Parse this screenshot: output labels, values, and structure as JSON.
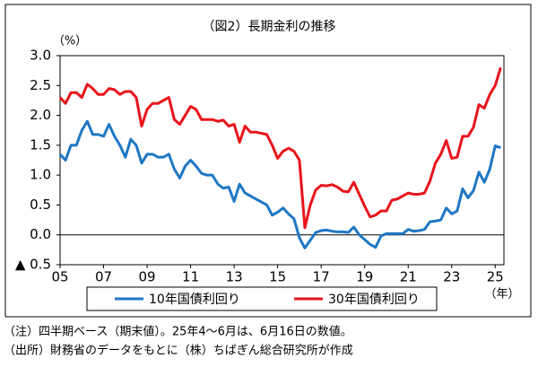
{
  "chart_data": {
    "type": "line",
    "title": "（図2）長期金利の推移",
    "y_label": "（%）",
    "x_label": "（年）",
    "notes": [
      "（注）四半期ベース（期末値）。25年4～6月は、6月16日の数値。",
      "（出所）財務省のデータをもとに（株）ちばぎん総合研究所が作成"
    ],
    "x": [
      2005,
      2005.25,
      2005.5,
      2005.75,
      2006,
      2006.25,
      2006.5,
      2006.75,
      2007,
      2007.25,
      2007.5,
      2007.75,
      2008,
      2008.25,
      2008.5,
      2008.75,
      2009,
      2009.25,
      2009.5,
      2009.75,
      2010,
      2010.25,
      2010.5,
      2010.75,
      2011,
      2011.25,
      2011.5,
      2011.75,
      2012,
      2012.25,
      2012.5,
      2012.75,
      2013,
      2013.25,
      2013.5,
      2013.75,
      2014,
      2014.25,
      2014.5,
      2014.75,
      2015,
      2015.25,
      2015.5,
      2015.75,
      2016,
      2016.25,
      2016.5,
      2016.75,
      2017,
      2017.25,
      2017.5,
      2017.75,
      2018,
      2018.25,
      2018.5,
      2018.75,
      2019,
      2019.25,
      2019.5,
      2019.75,
      2020,
      2020.25,
      2020.5,
      2020.75,
      2021,
      2021.25,
      2021.5,
      2021.75,
      2022,
      2022.25,
      2022.5,
      2022.75,
      2023,
      2023.25,
      2023.5,
      2023.75,
      2024,
      2024.25,
      2024.5,
      2024.75,
      2025,
      2025.25
    ],
    "series": [
      {
        "name": "10年国債利回り",
        "color": "#1f77c4",
        "values": [
          1.35,
          1.25,
          1.5,
          1.5,
          1.75,
          1.9,
          1.68,
          1.68,
          1.65,
          1.85,
          1.65,
          1.5,
          1.3,
          1.6,
          1.5,
          1.2,
          1.35,
          1.35,
          1.3,
          1.3,
          1.35,
          1.1,
          0.95,
          1.15,
          1.25,
          1.15,
          1.03,
          1.0,
          1.0,
          0.85,
          0.78,
          0.8,
          0.56,
          0.85,
          0.7,
          0.65,
          0.6,
          0.55,
          0.5,
          0.33,
          0.38,
          0.45,
          0.35,
          0.27,
          -0.05,
          -0.22,
          -0.09,
          0.04,
          0.07,
          0.08,
          0.06,
          0.05,
          0.05,
          0.04,
          0.13,
          0.0,
          -0.08,
          -0.16,
          -0.21,
          -0.02,
          0.02,
          0.02,
          0.02,
          0.02,
          0.09,
          0.06,
          0.07,
          0.09,
          0.22,
          0.23,
          0.25,
          0.45,
          0.35,
          0.4,
          0.77,
          0.62,
          0.74,
          1.05,
          0.88,
          1.1,
          1.49,
          1.46
        ]
      },
      {
        "name": "30年国債利回り",
        "color": "#e8141b",
        "values": [
          2.3,
          2.2,
          2.38,
          2.38,
          2.3,
          2.52,
          2.45,
          2.35,
          2.35,
          2.45,
          2.43,
          2.35,
          2.4,
          2.4,
          2.3,
          1.82,
          2.1,
          2.2,
          2.2,
          2.25,
          2.3,
          1.93,
          1.85,
          2.0,
          2.15,
          2.1,
          1.93,
          1.93,
          1.93,
          1.9,
          1.92,
          1.82,
          1.85,
          1.55,
          1.82,
          1.72,
          1.72,
          1.7,
          1.68,
          1.5,
          1.28,
          1.4,
          1.45,
          1.4,
          1.25,
          0.12,
          0.5,
          0.75,
          0.83,
          0.82,
          0.84,
          0.8,
          0.73,
          0.72,
          0.88,
          0.68,
          0.48,
          0.3,
          0.33,
          0.4,
          0.4,
          0.58,
          0.6,
          0.65,
          0.7,
          0.68,
          0.68,
          0.7,
          0.9,
          1.2,
          1.35,
          1.58,
          1.28,
          1.3,
          1.65,
          1.65,
          1.8,
          2.18,
          2.12,
          2.35,
          2.5,
          2.8
        ]
      }
    ],
    "xlim": [
      2005,
      2025.4
    ],
    "xticks": [
      {
        "value": 2005,
        "label": "05"
      },
      {
        "value": 2007,
        "label": "07"
      },
      {
        "value": 2009,
        "label": "09"
      },
      {
        "value": 2011,
        "label": "11"
      },
      {
        "value": 2013,
        "label": "13"
      },
      {
        "value": 2015,
        "label": "15"
      },
      {
        "value": 2017,
        "label": "17"
      },
      {
        "value": 2019,
        "label": "19"
      },
      {
        "value": 2021,
        "label": "21"
      },
      {
        "value": 2023,
        "label": "23"
      },
      {
        "value": 2025,
        "label": "25"
      }
    ],
    "ylim": [
      -0.5,
      3.0
    ],
    "yticks": [
      {
        "value": 3,
        "label": "3.0"
      },
      2.5,
      {
        "value": 2,
        "label": "2.0"
      },
      1.5,
      {
        "value": 1,
        "label": "1.0"
      },
      0.5,
      {
        "value": 0,
        "label": "0.0"
      },
      {
        "value": -0.5,
        "label": "▲ 0.5"
      }
    ]
  }
}
